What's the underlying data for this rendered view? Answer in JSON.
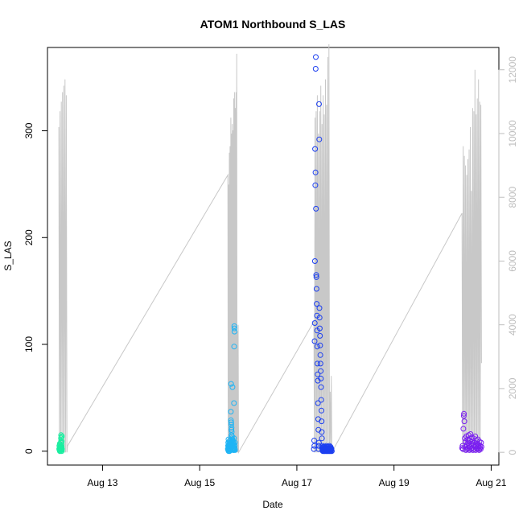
{
  "chart_data": {
    "type": "scatter",
    "title": "ATOM1 Northbound S_LAS",
    "xlabel": "Date",
    "ylabel": "S_LAS",
    "x_range": [
      "2023-08-12T00:00",
      "2023-08-21T00:00"
    ],
    "x_ticks": [
      {
        "date": "2023-08-13",
        "label": "Aug 13"
      },
      {
        "date": "2023-08-15",
        "label": "Aug 15"
      },
      {
        "date": "2023-08-17",
        "label": "Aug 17"
      },
      {
        "date": "2023-08-19",
        "label": "Aug 19"
      },
      {
        "date": "2023-08-21",
        "label": "Aug 21"
      }
    ],
    "ylim": [
      -13,
      378
    ],
    "y_ticks": [
      0,
      100,
      200,
      300
    ],
    "y2lim": [
      -400,
      12700
    ],
    "y2_ticks": [
      0,
      2000,
      4000,
      6000,
      8000,
      10000,
      12000
    ],
    "grid": false,
    "colors": {
      "line_series": "#c8c8c8",
      "right_axis": "#bebebe",
      "group_aug12": "#1aeea0",
      "group_aug15": "#1eb4f5",
      "group_aug17": "#1c3ff0",
      "group_aug20": "#7a1ff0"
    },
    "groups": [
      {
        "name": "aug12",
        "t_start": "2023-08-12T02:24",
        "t_end": "2023-08-12T06:43",
        "points": [
          [
            0.05,
            2
          ],
          [
            0.07,
            5
          ],
          [
            0.08,
            1
          ],
          [
            0.1,
            3
          ],
          [
            0.11,
            7
          ],
          [
            0.12,
            0
          ],
          [
            0.13,
            4
          ],
          [
            0.14,
            2
          ],
          [
            0.15,
            6
          ],
          [
            0.16,
            1
          ],
          [
            0.17,
            3
          ],
          [
            0.18,
            0
          ],
          [
            0.19,
            5
          ],
          [
            0.2,
            2
          ],
          [
            0.21,
            4
          ],
          [
            0.22,
            1
          ],
          [
            0.23,
            8
          ],
          [
            0.24,
            3
          ],
          [
            0.25,
            12
          ],
          [
            0.26,
            15
          ],
          [
            0.27,
            10
          ],
          [
            0.28,
            13
          ],
          [
            0.29,
            3
          ],
          [
            0.3,
            2
          ],
          [
            0.31,
            6
          ],
          [
            0.32,
            1
          ],
          [
            0.33,
            4
          ],
          [
            0.34,
            0
          ],
          [
            0.35,
            9
          ],
          [
            0.36,
            14
          ],
          [
            0.37,
            2
          ]
        ]
      },
      {
        "name": "aug15",
        "t_start": "2023-08-15T13:55",
        "t_end": "2023-08-15T19:12",
        "points": [
          [
            0.0,
            2
          ],
          [
            0.02,
            5
          ],
          [
            0.03,
            1
          ],
          [
            0.04,
            8
          ],
          [
            0.05,
            3
          ],
          [
            0.06,
            11
          ],
          [
            0.07,
            0
          ],
          [
            0.08,
            4
          ],
          [
            0.09,
            6
          ],
          [
            0.1,
            2
          ],
          [
            0.11,
            9
          ],
          [
            0.12,
            1
          ],
          [
            0.13,
            5
          ],
          [
            0.14,
            3
          ],
          [
            0.15,
            7
          ],
          [
            0.16,
            0
          ],
          [
            0.17,
            4
          ],
          [
            0.18,
            2
          ],
          [
            0.19,
            10
          ],
          [
            0.2,
            1
          ],
          [
            0.21,
            6
          ],
          [
            0.22,
            3
          ],
          [
            0.23,
            8
          ],
          [
            0.24,
            2
          ],
          [
            0.25,
            5
          ],
          [
            0.26,
            1
          ],
          [
            0.27,
            7
          ],
          [
            0.28,
            37
          ],
          [
            0.29,
            29
          ],
          [
            0.3,
            63
          ],
          [
            0.31,
            27
          ],
          [
            0.32,
            25
          ],
          [
            0.33,
            20
          ],
          [
            0.34,
            15
          ],
          [
            0.35,
            22
          ],
          [
            0.36,
            18
          ],
          [
            0.37,
            12
          ],
          [
            0.38,
            9
          ],
          [
            0.39,
            14
          ],
          [
            0.4,
            6
          ],
          [
            0.41,
            10
          ],
          [
            0.42,
            4
          ],
          [
            0.43,
            60
          ],
          [
            0.44,
            11
          ],
          [
            0.45,
            3
          ],
          [
            0.46,
            8
          ],
          [
            0.47,
            2
          ],
          [
            0.48,
            5
          ],
          [
            0.49,
            1
          ],
          [
            0.5,
            9
          ],
          [
            0.51,
            3
          ],
          [
            0.52,
            6
          ],
          [
            0.53,
            2
          ],
          [
            0.54,
            4
          ],
          [
            0.55,
            1
          ],
          [
            0.56,
            7
          ],
          [
            0.57,
            45
          ],
          [
            0.58,
            12
          ],
          [
            0.59,
            98
          ],
          [
            0.6,
            117
          ],
          [
            0.61,
            115
          ],
          [
            0.62,
            112
          ],
          [
            0.63,
            3
          ],
          [
            0.64,
            5
          ],
          [
            0.65,
            2
          ],
          [
            0.66,
            8
          ],
          [
            0.67,
            1
          ]
        ]
      },
      {
        "name": "aug17",
        "t_start": "2023-08-17T08:24",
        "t_end": "2023-08-17T17:17",
        "points": [
          [
            0.0,
            2
          ],
          [
            0.02,
            10
          ],
          [
            0.03,
            5
          ],
          [
            0.04,
            103
          ],
          [
            0.05,
            120
          ],
          [
            0.06,
            178
          ],
          [
            0.07,
            283
          ],
          [
            0.08,
            249
          ],
          [
            0.09,
            261
          ],
          [
            0.1,
            358
          ],
          [
            0.11,
            369
          ],
          [
            0.12,
            227
          ],
          [
            0.13,
            165
          ],
          [
            0.14,
            163
          ],
          [
            0.15,
            152
          ],
          [
            0.16,
            138
          ],
          [
            0.17,
            127
          ],
          [
            0.18,
            113
          ],
          [
            0.19,
            98
          ],
          [
            0.2,
            82
          ],
          [
            0.21,
            72
          ],
          [
            0.22,
            66
          ],
          [
            0.23,
            45
          ],
          [
            0.24,
            30
          ],
          [
            0.25,
            20
          ],
          [
            0.26,
            5
          ],
          [
            0.27,
            2
          ],
          [
            0.28,
            8
          ],
          [
            0.29,
            325
          ],
          [
            0.3,
            292
          ],
          [
            0.31,
            134
          ],
          [
            0.32,
            125
          ],
          [
            0.33,
            115
          ],
          [
            0.34,
            108
          ],
          [
            0.35,
            99
          ],
          [
            0.36,
            90
          ],
          [
            0.37,
            82
          ],
          [
            0.38,
            75
          ],
          [
            0.39,
            68
          ],
          [
            0.4,
            60
          ],
          [
            0.41,
            48
          ],
          [
            0.42,
            38
          ],
          [
            0.43,
            28
          ],
          [
            0.44,
            18
          ],
          [
            0.45,
            12
          ],
          [
            0.46,
            3
          ],
          [
            0.47,
            1
          ],
          [
            0.48,
            5
          ],
          [
            0.49,
            2
          ],
          [
            0.5,
            0
          ],
          [
            0.51,
            4
          ],
          [
            0.52,
            1
          ],
          [
            0.53,
            3
          ],
          [
            0.54,
            0
          ],
          [
            0.55,
            2
          ],
          [
            0.56,
            1
          ],
          [
            0.57,
            4
          ],
          [
            0.58,
            2
          ],
          [
            0.59,
            0
          ],
          [
            0.6,
            3
          ],
          [
            0.61,
            1
          ],
          [
            0.62,
            2
          ],
          [
            0.63,
            0
          ],
          [
            0.64,
            4
          ],
          [
            0.65,
            1
          ],
          [
            0.66,
            3
          ],
          [
            0.67,
            2
          ],
          [
            0.68,
            0
          ],
          [
            0.69,
            5
          ],
          [
            0.7,
            1
          ],
          [
            0.71,
            2
          ],
          [
            0.72,
            0
          ],
          [
            0.73,
            3
          ],
          [
            0.74,
            1
          ],
          [
            0.75,
            4
          ],
          [
            0.76,
            2
          ],
          [
            0.77,
            0
          ],
          [
            0.78,
            3
          ],
          [
            0.79,
            1
          ],
          [
            0.8,
            2
          ],
          [
            0.81,
            0
          ],
          [
            0.82,
            4
          ],
          [
            0.83,
            1
          ],
          [
            0.84,
            3
          ],
          [
            0.85,
            2
          ],
          [
            0.86,
            0
          ],
          [
            0.87,
            5
          ],
          [
            0.88,
            1
          ],
          [
            0.89,
            2
          ],
          [
            0.9,
            0
          ],
          [
            0.91,
            3
          ],
          [
            0.92,
            1
          ],
          [
            0.93,
            4
          ],
          [
            0.94,
            2
          ],
          [
            0.95,
            0
          ],
          [
            0.96,
            3
          ],
          [
            0.97,
            1
          ],
          [
            0.98,
            2
          ],
          [
            1.0,
            0
          ]
        ]
      },
      {
        "name": "aug20",
        "t_start": "2023-08-20T09:36",
        "t_end": "2023-08-20T19:12",
        "points": [
          [
            0.0,
            3
          ],
          [
            0.03,
            5
          ],
          [
            0.05,
            2
          ],
          [
            0.07,
            21
          ],
          [
            0.09,
            33
          ],
          [
            0.1,
            35
          ],
          [
            0.12,
            28
          ],
          [
            0.14,
            12
          ],
          [
            0.16,
            4
          ],
          [
            0.18,
            9
          ],
          [
            0.2,
            1
          ],
          [
            0.22,
            14
          ],
          [
            0.24,
            6
          ],
          [
            0.26,
            2
          ],
          [
            0.28,
            11
          ],
          [
            0.3,
            3
          ],
          [
            0.32,
            8
          ],
          [
            0.34,
            15
          ],
          [
            0.36,
            5
          ],
          [
            0.38,
            1
          ],
          [
            0.4,
            10
          ],
          [
            0.42,
            4
          ],
          [
            0.44,
            16
          ],
          [
            0.46,
            2
          ],
          [
            0.48,
            7
          ],
          [
            0.5,
            13
          ],
          [
            0.52,
            3
          ],
          [
            0.54,
            9
          ],
          [
            0.56,
            1
          ],
          [
            0.58,
            6
          ],
          [
            0.6,
            12
          ],
          [
            0.62,
            2
          ],
          [
            0.64,
            8
          ],
          [
            0.66,
            4
          ],
          [
            0.68,
            14
          ],
          [
            0.7,
            1
          ],
          [
            0.72,
            5
          ],
          [
            0.74,
            10
          ],
          [
            0.76,
            3
          ],
          [
            0.78,
            7
          ],
          [
            0.8,
            2
          ],
          [
            0.82,
            11
          ],
          [
            0.84,
            4
          ],
          [
            0.86,
            6
          ],
          [
            0.88,
            1
          ],
          [
            0.9,
            9
          ],
          [
            0.92,
            3
          ],
          [
            0.94,
            5
          ],
          [
            0.96,
            2
          ],
          [
            0.98,
            8
          ],
          [
            1.0,
            4
          ]
        ]
      }
    ],
    "line_series": [
      {
        "name": "aug12",
        "t_start": "2023-08-12T02:24",
        "t_end": "2023-08-12T06:43",
        "values": [
          10200,
          0,
          10700,
          0,
          11000,
          0,
          11300,
          0,
          11500,
          0,
          11700,
          0,
          11200,
          0,
          200
        ]
      },
      {
        "name": "aug15",
        "t_start": "2023-08-15T13:55",
        "t_end": "2023-08-15T19:12",
        "values": [
          8700,
          0,
          8400,
          0,
          9400,
          0,
          9600,
          0,
          10500,
          0,
          10000,
          0,
          10300,
          0,
          10100,
          0,
          11100,
          0,
          11300,
          0,
          10800,
          0,
          11300,
          0,
          12500,
          0,
          3800,
          0,
          4000,
          0
        ]
      },
      {
        "name": "aug17",
        "t_start": "2023-08-17T08:24",
        "t_end": "2023-08-17T17:17",
        "values": [
          4100,
          0,
          10500,
          0,
          10700,
          0,
          11200,
          0,
          10000,
          0,
          10700,
          0,
          11500,
          0,
          10300,
          0,
          11200,
          0,
          10600,
          0,
          11700,
          0,
          10900,
          0,
          12400,
          0,
          12800,
          0,
          1900,
          0,
          2400,
          0
        ]
      },
      {
        "name": "aug20",
        "t_start": "2023-08-20T09:36",
        "t_end": "2023-08-20T19:12",
        "values": [
          7500,
          0,
          9600,
          0,
          9300,
          0,
          9000,
          0,
          8700,
          0,
          9200,
          0,
          9500,
          0,
          10200,
          0,
          8200,
          0,
          10800,
          0,
          10700,
          0,
          12000,
          0,
          10600,
          0,
          11100,
          0,
          11700,
          0,
          11000,
          0,
          10900,
          2800
        ]
      }
    ]
  }
}
